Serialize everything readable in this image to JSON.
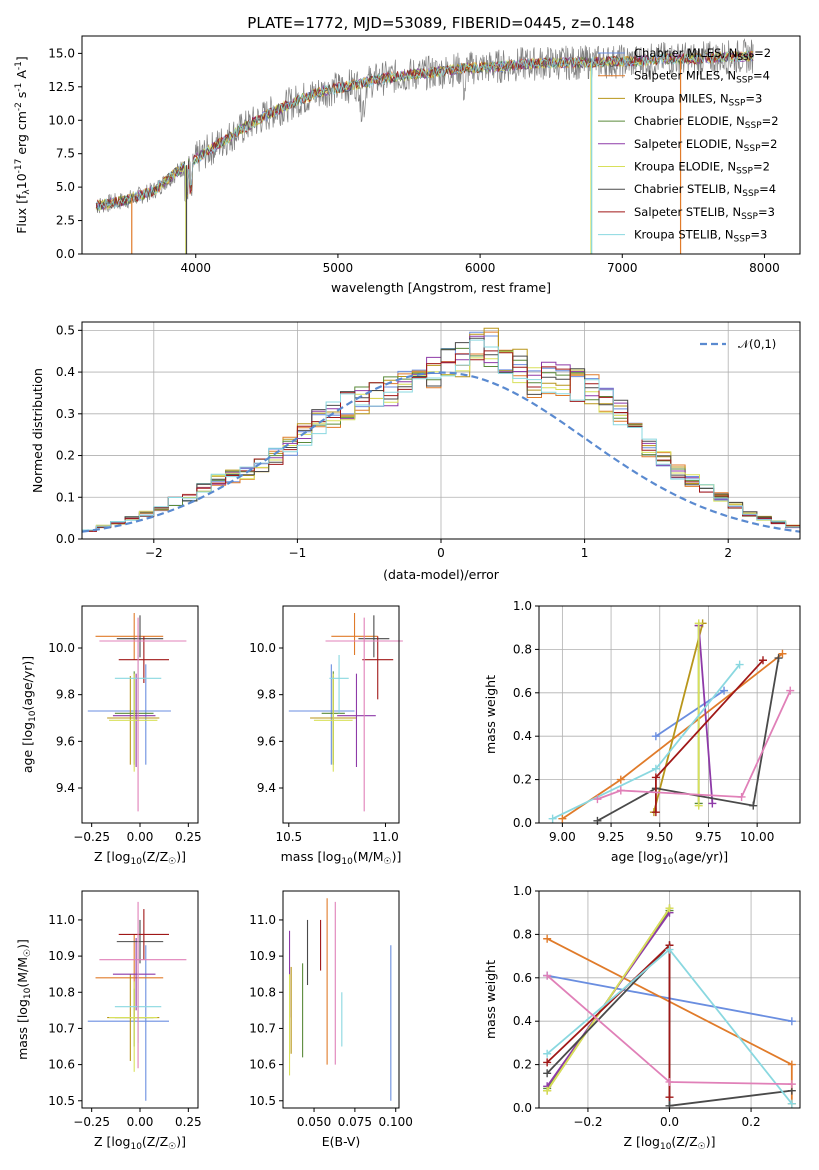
{
  "figure_title": "PLATE=1772, MJD=53089, FIBERID=0445, z=0.148",
  "colors": {
    "Chabrier MILES": "#6a8ee0",
    "Salpeter MILES": "#e07b2a",
    "Kroupa MILES": "#b8961a",
    "Chabrier ELODIE": "#5a8a3a",
    "Salpeter ELODIE": "#8e3aa8",
    "Kroupa ELODIE": "#d8e05a",
    "Chabrier STELIB": "#4a4a4a",
    "Salpeter STELIB": "#a01818",
    "Kroupa STELIB": "#8ad8e0",
    "data": "#808080",
    "pink": "#e080b8",
    "normal": "#5a8ad0"
  },
  "chart_data": [
    {
      "type": "line",
      "panel": "spectrum",
      "title": "PLATE=1772, MJD=53089, FIBERID=0445, z=0.148",
      "xlabel": "wavelength [Angstrom, rest frame]",
      "ylabel": "Flux [f$_\\lambda$10$^{-17}$ erg cm$^{-2}$ s$^{-1}$ A$^{-1}$]",
      "xlim": [
        3200,
        8250
      ],
      "ylim": [
        0,
        16.3
      ],
      "xticks": [
        "4000",
        "5000",
        "6000",
        "7000",
        "8000"
      ],
      "yticks": [
        "0.0",
        "2.5",
        "5.0",
        "7.5",
        "10.0",
        "12.5",
        "15.0"
      ],
      "legend": [
        "Chabrier MILES, N$_{SSP}$=2",
        "Salpeter MILES, N$_{SSP}$=4",
        "Kroupa MILES, N$_{SSP}$=3",
        "Chabrier ELODIE, N$_{SSP}$=2",
        "Salpeter ELODIE, N$_{SSP}$=2",
        "Kroupa ELODIE, N$_{SSP}$=2",
        "Chabrier STELIB, N$_{SSP}$=4",
        "Salpeter STELIB, N$_{SSP}$=3",
        "Kroupa STELIB, N$_{SSP}$=3"
      ],
      "continuum": {
        "x": [
          3300,
          3500,
          3700,
          3900,
          4100,
          4300,
          4500,
          4700,
          4900,
          5100,
          5300,
          5500,
          5700,
          5900,
          6100,
          6300,
          6500,
          6700,
          6900,
          7100,
          7300,
          7500,
          7700,
          7900
        ],
        "y": [
          3.6,
          4.0,
          4.7,
          6.4,
          7.8,
          9.2,
          10.4,
          11.4,
          12.2,
          12.6,
          13.1,
          13.4,
          13.6,
          13.9,
          14.0,
          14.2,
          14.3,
          14.3,
          14.4,
          14.4,
          14.6,
          14.6,
          14.7,
          14.8
        ]
      },
      "drops": [
        {
          "x": 3550,
          "name": "Salpeter MILES"
        },
        {
          "x": 3930,
          "name": "Kroupa ELODIE"
        },
        {
          "x": 3935,
          "name": "Chabrier STELIB"
        },
        {
          "x": 6780,
          "name": "Kroupa ELODIE"
        },
        {
          "x": 6785,
          "name": "Kroupa STELIB"
        },
        {
          "x": 7410,
          "name": "Salpeter MILES"
        }
      ]
    },
    {
      "type": "bar",
      "panel": "residual_histogram",
      "xlabel": "(data-model)/error",
      "ylabel": "Normed distribution",
      "xlim": [
        -2.5,
        2.5
      ],
      "ylim": [
        0,
        0.52
      ],
      "xticks": [
        "−2",
        "−1",
        "0",
        "1",
        "2"
      ],
      "yticks": [
        "0.0",
        "0.1",
        "0.2",
        "0.3",
        "0.4",
        "0.5"
      ],
      "legend": [
        "$\\mathcal{N}(0,1)$"
      ],
      "bin_width": 0.1,
      "bin_start": -2.5,
      "hist_mean": [
        0.02,
        0.03,
        0.04,
        0.05,
        0.06,
        0.07,
        0.09,
        0.1,
        0.12,
        0.14,
        0.15,
        0.16,
        0.18,
        0.2,
        0.22,
        0.25,
        0.28,
        0.3,
        0.32,
        0.33,
        0.34,
        0.35,
        0.37,
        0.38,
        0.4,
        0.42,
        0.43,
        0.45,
        0.46,
        0.44,
        0.41,
        0.37,
        0.39,
        0.38,
        0.37,
        0.36,
        0.33,
        0.3,
        0.26,
        0.22,
        0.19,
        0.16,
        0.14,
        0.12,
        0.1,
        0.08,
        0.06,
        0.05,
        0.04,
        0.03
      ],
      "normal_curve": {
        "mean": 0,
        "sigma": 1
      }
    },
    {
      "type": "scatter",
      "panel": "age_vs_metallicity_errorbars",
      "xlabel": "Z [log$_{10}$(Z/Z$_\\odot$)]",
      "ylabel": "age  [log$_{10}$(age/yr)]",
      "xlim": [
        -0.3,
        0.3
      ],
      "ylim": [
        9.25,
        10.18
      ],
      "xticks": [
        "−0.25",
        "0.00",
        "0.25"
      ],
      "yticks": [
        "9.4",
        "9.6",
        "9.8",
        "10.0"
      ],
      "points": [
        {
          "name": "Chabrier MILES",
          "x": 0.03,
          "xerr": [
            0.3,
            0.13
          ],
          "y": 9.73,
          "yerr": [
            0.23,
            0.2
          ]
        },
        {
          "name": "Salpeter MILES",
          "x": -0.03,
          "xerr": [
            0.2,
            0.15
          ],
          "y": 10.05,
          "yerr": [
            0.1,
            0.1
          ]
        },
        {
          "name": "Kroupa MILES",
          "x": -0.05,
          "xerr": [
            0.12,
            0.15
          ],
          "y": 9.7,
          "yerr": [
            0.2,
            0.18
          ]
        },
        {
          "name": "Chabrier ELODIE",
          "x": -0.03,
          "xerr": [
            0.1,
            0.1
          ],
          "y": 9.72,
          "yerr": [
            0.22,
            0.18
          ]
        },
        {
          "name": "Salpeter ELODIE",
          "x": -0.02,
          "xerr": [
            0.12,
            0.1
          ],
          "y": 9.71,
          "yerr": [
            0.22,
            0.18
          ]
        },
        {
          "name": "Kroupa ELODIE",
          "x": -0.03,
          "xerr": [
            0.13,
            0.12
          ],
          "y": 9.69,
          "yerr": [
            0.22,
            0.2
          ]
        },
        {
          "name": "Chabrier STELIB",
          "x": 0.0,
          "xerr": [
            0.12,
            0.12
          ],
          "y": 10.04,
          "yerr": [
            0.08,
            0.1
          ]
        },
        {
          "name": "Salpeter STELIB",
          "x": 0.02,
          "xerr": [
            0.13,
            0.13
          ],
          "y": 9.95,
          "yerr": [
            0.1,
            0.1
          ]
        },
        {
          "name": "Kroupa STELIB",
          "x": -0.01,
          "xerr": [
            0.12,
            0.12
          ],
          "y": 9.87,
          "yerr": [
            0.15,
            0.1
          ]
        },
        {
          "name": "pink",
          "x": -0.01,
          "xerr": [
            0.2,
            0.25
          ],
          "y": 10.03,
          "yerr": [
            0.73,
            0.1
          ]
        }
      ]
    },
    {
      "type": "scatter",
      "panel": "age_vs_mass_errorbars",
      "xlabel": "mass [log$_{10}$(M/M$_\\odot$)]",
      "ylabel": "",
      "xlim": [
        10.47,
        11.07
      ],
      "ylim": [
        9.25,
        10.18
      ],
      "xticks": [
        "10.5",
        "11.0"
      ],
      "yticks": [
        "9.4",
        "9.6",
        "9.8",
        "10.0"
      ],
      "points": [
        {
          "name": "Chabrier MILES",
          "x": 10.72,
          "xerr": [
            0.22,
            0.12
          ],
          "y": 9.73,
          "yerr": [
            0.23,
            0.2
          ]
        },
        {
          "name": "Salpeter MILES",
          "x": 10.84,
          "xerr": [
            0.12,
            0.12
          ],
          "y": 10.05,
          "yerr": [
            0.08,
            0.1
          ]
        },
        {
          "name": "Kroupa MILES",
          "x": 10.73,
          "xerr": [
            0.12,
            0.12
          ],
          "y": 9.7,
          "yerr": [
            0.2,
            0.18
          ]
        },
        {
          "name": "Chabrier ELODIE",
          "x": 10.73,
          "xerr": [
            0.06,
            0.06
          ],
          "y": 9.72,
          "yerr": [
            0.22,
            0.18
          ]
        },
        {
          "name": "Salpeter ELODIE",
          "x": 10.85,
          "xerr": [
            0.1,
            0.1
          ],
          "y": 9.71,
          "yerr": [
            0.22,
            0.18
          ]
        },
        {
          "name": "Kroupa ELODIE",
          "x": 10.73,
          "xerr": [
            0.1,
            0.1
          ],
          "y": 9.69,
          "yerr": [
            0.22,
            0.2
          ]
        },
        {
          "name": "Chabrier STELIB",
          "x": 10.94,
          "xerr": [
            0.08,
            0.08
          ],
          "y": 10.04,
          "yerr": [
            0.08,
            0.1
          ]
        },
        {
          "name": "Salpeter STELIB",
          "x": 10.96,
          "xerr": [
            0.08,
            0.08
          ],
          "y": 9.95,
          "yerr": [
            0.17,
            0.1
          ]
        },
        {
          "name": "Kroupa STELIB",
          "x": 10.76,
          "xerr": [
            0.05,
            0.05
          ],
          "y": 9.87,
          "yerr": [
            0.15,
            0.1
          ]
        },
        {
          "name": "pink",
          "x": 10.89,
          "xerr": [
            0.2,
            0.2
          ],
          "y": 10.03,
          "yerr": [
            0.73,
            0.1
          ]
        }
      ]
    },
    {
      "type": "line",
      "panel": "mass_weight_vs_age",
      "xlabel": "age  [log$_{10}$(age/yr)]",
      "ylabel": "mass weight",
      "xlim": [
        8.88,
        10.22
      ],
      "ylim": [
        0,
        1.0
      ],
      "xticks": [
        "9.00",
        "9.25",
        "9.50",
        "9.75",
        "10.00"
      ],
      "yticks": [
        "0.0",
        "0.2",
        "0.4",
        "0.6",
        "0.8",
        "1.0"
      ],
      "series": [
        {
          "name": "Chabrier MILES",
          "x": [
            9.48,
            9.83
          ],
          "y": [
            0.4,
            0.61
          ]
        },
        {
          "name": "Salpeter MILES",
          "x": [
            9.0,
            9.3,
            10.13
          ],
          "y": [
            0.02,
            0.2,
            0.78
          ]
        },
        {
          "name": "Kroupa MILES",
          "x": [
            9.47,
            9.72
          ],
          "y": [
            0.05,
            0.92
          ]
        },
        {
          "name": "Chabrier ELODIE",
          "x": [
            9.7,
            9.7
          ],
          "y": [
            0.09,
            0.91
          ]
        },
        {
          "name": "Salpeter ELODIE",
          "x": [
            9.7,
            9.77
          ],
          "y": [
            0.91,
            0.09
          ]
        },
        {
          "name": "Kroupa ELODIE",
          "x": [
            9.7,
            9.7
          ],
          "y": [
            0.08,
            0.92
          ]
        },
        {
          "name": "Chabrier STELIB",
          "x": [
            9.18,
            9.48,
            9.98,
            10.11
          ],
          "y": [
            0.01,
            0.16,
            0.08,
            0.76
          ]
        },
        {
          "name": "Salpeter STELIB",
          "x": [
            9.48,
            9.48,
            10.03
          ],
          "y": [
            0.05,
            0.21,
            0.75
          ]
        },
        {
          "name": "Kroupa STELIB",
          "x": [
            8.95,
            9.48,
            9.91
          ],
          "y": [
            0.02,
            0.25,
            0.73
          ]
        },
        {
          "name": "pink",
          "x": [
            9.18,
            9.3,
            9.92,
            10.17
          ],
          "y": [
            0.11,
            0.15,
            0.12,
            0.61
          ]
        }
      ]
    },
    {
      "type": "scatter",
      "panel": "mass_vs_metallicity_errorbars",
      "xlabel": "Z [log$_{10}$(Z/Z$_\\odot$)]",
      "ylabel": "mass [log$_{10}$(M/M$_\\odot$)]",
      "xlim": [
        -0.3,
        0.3
      ],
      "ylim": [
        10.48,
        11.08
      ],
      "xticks": [
        "−0.25",
        "0.00",
        "0.25"
      ],
      "yticks": [
        "10.5",
        "10.6",
        "10.7",
        "10.8",
        "10.9",
        "11.0"
      ],
      "points": [
        {
          "name": "Chabrier MILES",
          "x": 0.03,
          "xerr": [
            0.3,
            0.12
          ],
          "y": 10.72,
          "yerr": [
            0.22,
            0.21
          ]
        },
        {
          "name": "Salpeter MILES",
          "x": -0.03,
          "xerr": [
            0.2,
            0.15
          ],
          "y": 10.84,
          "yerr": [
            0.12,
            0.12
          ]
        },
        {
          "name": "Kroupa MILES",
          "x": -0.05,
          "xerr": [
            0.12,
            0.15
          ],
          "y": 10.73,
          "yerr": [
            0.12,
            0.12
          ]
        },
        {
          "name": "Chabrier ELODIE",
          "x": -0.03,
          "xerr": [
            0.1,
            0.1
          ],
          "y": 10.73,
          "yerr": [
            0.08,
            0.08
          ]
        },
        {
          "name": "Salpeter ELODIE",
          "x": -0.02,
          "xerr": [
            0.12,
            0.1
          ],
          "y": 10.85,
          "yerr": [
            0.1,
            0.1
          ]
        },
        {
          "name": "Kroupa ELODIE",
          "x": -0.03,
          "xerr": [
            0.13,
            0.12
          ],
          "y": 10.73,
          "yerr": [
            0.15,
            0.1
          ]
        },
        {
          "name": "Chabrier STELIB",
          "x": 0.0,
          "xerr": [
            0.12,
            0.12
          ],
          "y": 10.94,
          "yerr": [
            0.06,
            0.06
          ]
        },
        {
          "name": "Salpeter STELIB",
          "x": 0.02,
          "xerr": [
            0.13,
            0.13
          ],
          "y": 10.96,
          "yerr": [
            0.07,
            0.07
          ]
        },
        {
          "name": "Kroupa STELIB",
          "x": -0.01,
          "xerr": [
            0.12,
            0.12
          ],
          "y": 10.76,
          "yerr": [
            0.1,
            0.1
          ]
        },
        {
          "name": "pink",
          "x": -0.01,
          "xerr": [
            0.2,
            0.25
          ],
          "y": 10.89,
          "yerr": [
            0.3,
            0.16
          ]
        }
      ]
    },
    {
      "type": "scatter",
      "panel": "mass_vs_ebv_errorbars",
      "xlabel": "E(B-V)",
      "ylabel": "",
      "xlim": [
        0.031,
        0.102
      ],
      "ylim": [
        10.48,
        11.08
      ],
      "xticks": [
        "0.050",
        "0.075",
        "0.100"
      ],
      "yticks": [
        "10.5",
        "10.6",
        "10.7",
        "10.8",
        "10.9",
        "11.0"
      ],
      "points": [
        {
          "name": "Chabrier MILES",
          "x": 0.097,
          "y": 10.72,
          "yerr": [
            0.22,
            0.21
          ]
        },
        {
          "name": "Salpeter MILES",
          "x": 0.058,
          "y": 10.83,
          "yerr": [
            0.23,
            0.23
          ]
        },
        {
          "name": "Kroupa MILES",
          "x": 0.036,
          "y": 10.75,
          "yerr": [
            0.12,
            0.12
          ]
        },
        {
          "name": "Chabrier ELODIE",
          "x": 0.043,
          "y": 10.75,
          "yerr": [
            0.13,
            0.13
          ]
        },
        {
          "name": "Salpeter ELODIE",
          "x": 0.035,
          "y": 10.85,
          "yerr": [
            0.12,
            0.12
          ]
        },
        {
          "name": "Kroupa ELODIE",
          "x": 0.035,
          "y": 10.72,
          "yerr": [
            0.15,
            0.13
          ]
        },
        {
          "name": "Chabrier STELIB",
          "x": 0.046,
          "y": 10.88,
          "yerr": [
            0.06,
            0.12
          ]
        },
        {
          "name": "Salpeter STELIB",
          "x": 0.054,
          "y": 10.93,
          "yerr": [
            0.07,
            0.07
          ]
        },
        {
          "name": "Kroupa STELIB",
          "x": 0.067,
          "y": 10.72,
          "yerr": [
            0.07,
            0.08
          ]
        },
        {
          "name": "pink",
          "x": 0.063,
          "y": 10.88,
          "yerr": [
            0.28,
            0.17
          ]
        }
      ]
    },
    {
      "type": "line",
      "panel": "mass_weight_vs_metallicity",
      "xlabel": "Z [log$_{10}$(Z/Z$_\\odot$)]",
      "ylabel": "mass weight",
      "xlim": [
        -0.32,
        0.32
      ],
      "ylim": [
        0,
        1.0
      ],
      "xticks": [
        "−0.2",
        "0.0",
        "0.2"
      ],
      "yticks": [
        "0.0",
        "0.2",
        "0.4",
        "0.6",
        "0.8",
        "1.0"
      ],
      "series": [
        {
          "name": "Chabrier MILES",
          "x": [
            -0.3,
            0.3
          ],
          "y": [
            0.61,
            0.4
          ]
        },
        {
          "name": "Salpeter MILES",
          "x": [
            -0.3,
            0.3,
            0.3
          ],
          "y": [
            0.78,
            0.2,
            0.02
          ]
        },
        {
          "name": "Kroupa MILES",
          "x": [
            -0.3,
            0.0
          ],
          "y": [
            0.08,
            0.92
          ]
        },
        {
          "name": "Chabrier ELODIE",
          "x": [
            -0.3,
            0.0
          ],
          "y": [
            0.09,
            0.91
          ]
        },
        {
          "name": "Salpeter ELODIE",
          "x": [
            -0.3,
            0.0
          ],
          "y": [
            0.1,
            0.9
          ]
        },
        {
          "name": "Kroupa ELODIE",
          "x": [
            -0.3,
            0.0
          ],
          "y": [
            0.08,
            0.92
          ]
        },
        {
          "name": "Chabrier STELIB",
          "x": [
            -0.3,
            0.0,
            0.0,
            0.3
          ],
          "y": [
            0.16,
            0.75,
            0.01,
            0.08
          ]
        },
        {
          "name": "Salpeter STELIB",
          "x": [
            -0.3,
            0.0,
            0.0
          ],
          "y": [
            0.21,
            0.75,
            0.05
          ]
        },
        {
          "name": "Kroupa STELIB",
          "x": [
            -0.3,
            0.0,
            0.3
          ],
          "y": [
            0.25,
            0.73,
            0.02
          ]
        },
        {
          "name": "pink",
          "x": [
            -0.3,
            0.0,
            0.3
          ],
          "y": [
            0.61,
            0.12,
            0.11
          ]
        }
      ]
    }
  ]
}
